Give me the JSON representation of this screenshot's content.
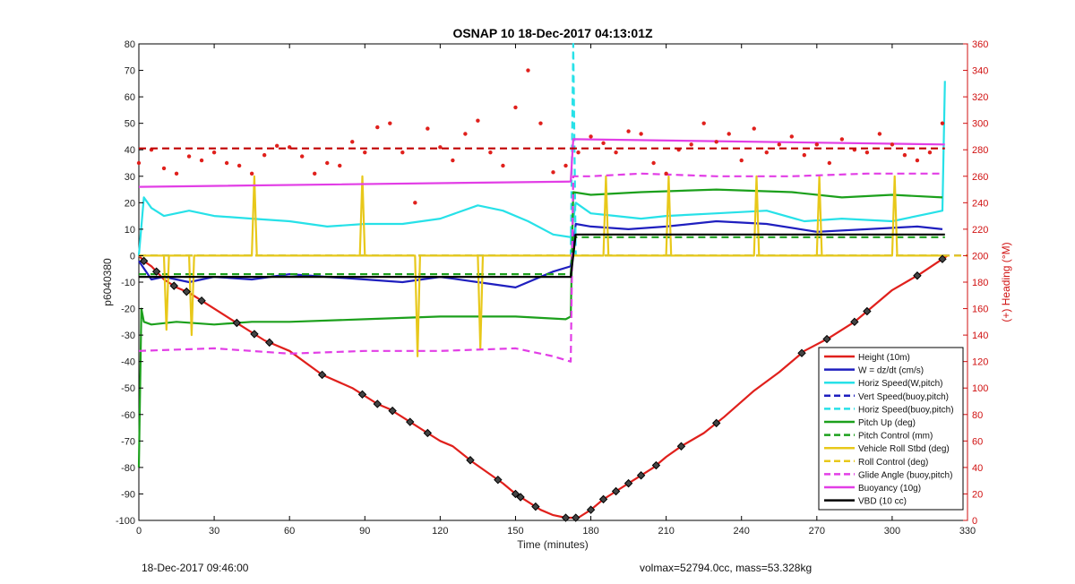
{
  "chart_data": {
    "type": "line",
    "title": "OSNAP 10 18-Dec-2017 04:13:01Z",
    "xlabel": "Time (minutes)",
    "ylabel": "p6040380",
    "y2label": "(+) Heading (°M)",
    "xlim": [
      0,
      330
    ],
    "ylim": [
      -100,
      80
    ],
    "y2lim": [
      0,
      360
    ],
    "xticks": [
      0,
      30,
      60,
      90,
      120,
      150,
      180,
      210,
      240,
      270,
      300,
      330
    ],
    "yticks": [
      -100,
      -90,
      -80,
      -70,
      -60,
      -50,
      -40,
      -30,
      -20,
      -10,
      0,
      10,
      20,
      30,
      40,
      50,
      60,
      70,
      80
    ],
    "y2ticks": [
      0,
      20,
      40,
      60,
      80,
      100,
      120,
      140,
      160,
      180,
      200,
      220,
      240,
      260,
      280,
      300,
      320,
      340,
      360
    ],
    "grid": false,
    "legend_position": "bottom-right",
    "colors": {
      "red": "#e0201c",
      "blue": "#1f1fbf",
      "cyan": "#27e1e8",
      "green": "#1ca01c",
      "yellow": "#e8c81a",
      "magenta": "#e23ee6",
      "black": "#000000",
      "darkred": "#c00000"
    },
    "series": [
      {
        "name": "Height (10m)",
        "color": "red",
        "style": "solid",
        "x": [
          0,
          2,
          5,
          10,
          15,
          20,
          25,
          30,
          40,
          50,
          60,
          73,
          85,
          90,
          95,
          100,
          105,
          110,
          115,
          120,
          125,
          133,
          145,
          150,
          155,
          160,
          165,
          170,
          172,
          175,
          180,
          185,
          190,
          195,
          200,
          205,
          210,
          216,
          225,
          233,
          245,
          255,
          265,
          275,
          285,
          290,
          300,
          311,
          322
        ],
        "y": [
          0,
          -2,
          -4,
          -9,
          -12,
          -14,
          -17,
          -20,
          -26,
          -32,
          -36,
          -45,
          -50,
          -53,
          -56,
          -58,
          -61,
          -64,
          -67,
          -70,
          -72,
          -78,
          -86,
          -90,
          -93,
          -96,
          -98,
          -99,
          -99,
          -99,
          -96,
          -92,
          -89,
          -86,
          -83,
          -80,
          -76,
          -72,
          -67,
          -61,
          -51,
          -44,
          -36,
          -31,
          -25,
          -21,
          -13,
          -7,
          0
        ]
      },
      {
        "name": "W = dz/dt (cm/s)",
        "color": "blue",
        "style": "solid",
        "x": [
          0,
          5,
          10,
          20,
          30,
          45,
          60,
          75,
          90,
          105,
          120,
          135,
          150,
          165,
          172,
          174,
          180,
          195,
          210,
          230,
          250,
          270,
          290,
          310,
          320
        ],
        "y": [
          -2,
          -9,
          -8,
          -10,
          -8,
          -9,
          -7,
          -8,
          -9,
          -10,
          -8,
          -10,
          -12,
          -6,
          -4,
          12,
          11,
          10,
          11,
          13,
          12,
          9,
          10,
          11,
          10
        ]
      },
      {
        "name": "Horiz Speed(W,pitch)",
        "color": "cyan",
        "style": "solid",
        "x": [
          0,
          2,
          5,
          10,
          20,
          30,
          45,
          60,
          75,
          90,
          105,
          120,
          135,
          145,
          155,
          165,
          172,
          174,
          180,
          190,
          200,
          210,
          230,
          250,
          265,
          280,
          300,
          315,
          320,
          321
        ],
        "y": [
          0,
          22,
          18,
          15,
          17,
          15,
          14,
          13,
          11,
          12,
          12,
          14,
          19,
          17,
          13,
          8,
          7,
          20,
          16,
          15,
          14,
          15,
          16,
          17,
          13,
          14,
          13,
          16,
          17,
          66
        ]
      },
      {
        "name": "Vert Speed(buoy,pitch)",
        "color": "blue",
        "style": "dashed",
        "x": [
          0,
          330
        ],
        "y": [
          0,
          0
        ]
      },
      {
        "name": "Horiz Speed(buoy,pitch)",
        "color": "cyan",
        "style": "dashed",
        "x": [
          0,
          172,
          173,
          174,
          321
        ],
        "y": [
          0,
          0,
          80,
          0,
          0
        ]
      },
      {
        "name": "Pitch Up (deg)",
        "color": "green",
        "style": "solid",
        "x": [
          0,
          1,
          2,
          5,
          15,
          30,
          45,
          60,
          90,
          120,
          150,
          170,
          172,
          173,
          180,
          200,
          230,
          260,
          280,
          300,
          320
        ],
        "y": [
          -80,
          -20,
          -25,
          -26,
          -25,
          -26,
          -25,
          -25,
          -24,
          -23,
          -23,
          -24,
          -23,
          24,
          23,
          24,
          25,
          24,
          22,
          23,
          22
        ]
      },
      {
        "name": "Pitch Control (mm)",
        "color": "green",
        "style": "dashed",
        "x": [
          0,
          172,
          173,
          321
        ],
        "y": [
          -7,
          -7,
          7,
          7
        ]
      },
      {
        "name": "Vehicle Roll Stbd (deg)",
        "color": "yellow",
        "style": "solid",
        "x": [
          0,
          10,
          11,
          12,
          20,
          21,
          22,
          45,
          46,
          47,
          88,
          89,
          90,
          110,
          111,
          112,
          135,
          136,
          137,
          170,
          172,
          173,
          185,
          186,
          187,
          210,
          211,
          212,
          245,
          246,
          247,
          270,
          271,
          272,
          300,
          301,
          302,
          320
        ],
        "y": [
          0,
          0,
          -28,
          0,
          0,
          -30,
          0,
          0,
          30,
          0,
          0,
          30,
          0,
          0,
          -38,
          0,
          0,
          -35,
          0,
          0,
          0,
          0,
          0,
          30,
          0,
          0,
          30,
          0,
          0,
          30,
          0,
          0,
          30,
          0,
          0,
          30,
          0,
          0
        ]
      },
      {
        "name": "Roll Control (deg)",
        "color": "yellow",
        "style": "dashed",
        "x": [
          0,
          330
        ],
        "y": [
          0,
          0
        ]
      },
      {
        "name": "Glide Angle (buoy,pitch)",
        "color": "magenta",
        "style": "dashed",
        "x": [
          0,
          30,
          60,
          90,
          120,
          150,
          165,
          172,
          173,
          180,
          200,
          230,
          260,
          290,
          320
        ],
        "y": [
          -36,
          -35,
          -37,
          -36,
          -36,
          -35,
          -38,
          -40,
          30,
          30,
          31,
          30,
          30,
          31,
          31
        ]
      },
      {
        "name": "Buoyancy (10g)",
        "color": "magenta",
        "style": "solid",
        "x": [
          0,
          172,
          173,
          321
        ],
        "y": [
          26,
          28,
          44,
          42
        ]
      },
      {
        "name": "VBD (10 cc)",
        "color": "black",
        "style": "solid",
        "x": [
          0,
          172,
          174,
          321
        ],
        "y": [
          -8,
          -8,
          8,
          8
        ]
      },
      {
        "name": "",
        "color": "red",
        "style": "dots",
        "axis": "right",
        "x": [
          0,
          5,
          10,
          15,
          20,
          25,
          30,
          35,
          40,
          45,
          50,
          55,
          60,
          65,
          70,
          75,
          80,
          85,
          90,
          95,
          100,
          105,
          110,
          115,
          120,
          125,
          130,
          135,
          140,
          145,
          150,
          155,
          160,
          165,
          170,
          175,
          180,
          185,
          190,
          195,
          200,
          205,
          210,
          215,
          220,
          225,
          230,
          235,
          240,
          245,
          250,
          255,
          260,
          265,
          270,
          275,
          280,
          285,
          290,
          295,
          300,
          305,
          310,
          315,
          320
        ],
        "y": [
          270,
          280,
          266,
          262,
          275,
          272,
          278,
          270,
          268,
          262,
          276,
          283,
          282,
          275,
          262,
          270,
          268,
          286,
          278,
          297,
          300,
          278,
          240,
          296,
          282,
          272,
          292,
          302,
          278,
          268,
          312,
          340,
          300,
          263,
          268,
          278,
          290,
          285,
          278,
          294,
          292,
          270,
          262,
          280,
          284,
          300,
          286,
          292,
          272,
          296,
          278,
          284,
          290,
          276,
          284,
          270,
          288,
          280,
          278,
          292,
          284,
          276,
          272,
          278,
          300
        ]
      },
      {
        "name": "",
        "color": "darkred",
        "style": "dashed",
        "axis": "right",
        "x": [
          0,
          321
        ],
        "y": [
          281,
          281
        ]
      }
    ],
    "legend": [
      {
        "label": "Height (10m)",
        "color": "red",
        "style": "solid"
      },
      {
        "label": "W = dz/dt (cm/s)",
        "color": "blue",
        "style": "solid"
      },
      {
        "label": "Horiz Speed(W,pitch)",
        "color": "cyan",
        "style": "solid"
      },
      {
        "label": "Vert Speed(buoy,pitch)",
        "color": "blue",
        "style": "dashed"
      },
      {
        "label": "Horiz Speed(buoy,pitch)",
        "color": "cyan",
        "style": "dashed"
      },
      {
        "label": "Pitch Up (deg)",
        "color": "green",
        "style": "solid"
      },
      {
        "label": "Pitch Control (mm)",
        "color": "green",
        "style": "dashed"
      },
      {
        "label": "Vehicle Roll Stbd (deg)",
        "color": "yellow",
        "style": "solid"
      },
      {
        "label": "Roll Control (deg)",
        "color": "yellow",
        "style": "dashed"
      },
      {
        "label": "Glide Angle (buoy,pitch)",
        "color": "magenta",
        "style": "dashed"
      },
      {
        "label": "Buoyancy (10g)",
        "color": "magenta",
        "style": "solid"
      },
      {
        "label": "VBD (10 cc)",
        "color": "black",
        "style": "solid"
      }
    ],
    "markers": {
      "series": "Height (10m)",
      "x": [
        2,
        7,
        14,
        19,
        25,
        39,
        46,
        52,
        73,
        89,
        95,
        101,
        108,
        115,
        132,
        143,
        150,
        152,
        158,
        170,
        174,
        180,
        185,
        190,
        195,
        200,
        206,
        216,
        230,
        264,
        274,
        285,
        290,
        310,
        320
      ]
    }
  },
  "footer": {
    "left": "18-Dec-2017 09:46:00",
    "right": "volmax=52794.0cc, mass=53.328kg"
  }
}
